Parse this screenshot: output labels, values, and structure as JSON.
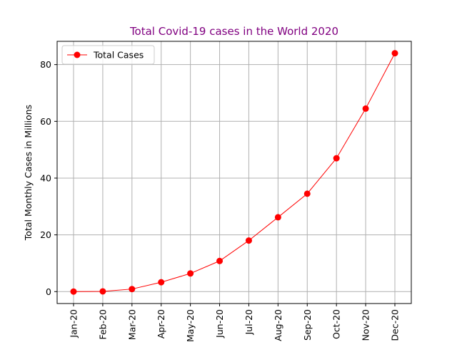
{
  "chart_data": {
    "type": "line",
    "title": "Total Covid-19 cases in the World 2020",
    "xlabel": "",
    "ylabel": "Total Monthly Cases in Millions",
    "categories": [
      "Jan-20",
      "Feb-20",
      "Mar-20",
      "Apr-20",
      "May-20",
      "Jun-20",
      "Jul-20",
      "Aug-20",
      "Sep-20",
      "Oct-20",
      "Nov-20",
      "Dec-20"
    ],
    "series": [
      {
        "name": "Total Cases",
        "values": [
          0.01,
          0.08,
          0.9,
          3.3,
          6.4,
          10.8,
          18.0,
          26.2,
          34.5,
          47.0,
          64.5,
          84.0
        ]
      }
    ],
    "ylim": [
      -4.2,
      88.2
    ],
    "yticks": [
      0,
      20,
      40,
      60,
      80
    ],
    "grid": true,
    "legend_position": "upper-left",
    "colors": {
      "series": "#ff0000",
      "title": "#800080",
      "grid": "#b0b0b0"
    }
  }
}
